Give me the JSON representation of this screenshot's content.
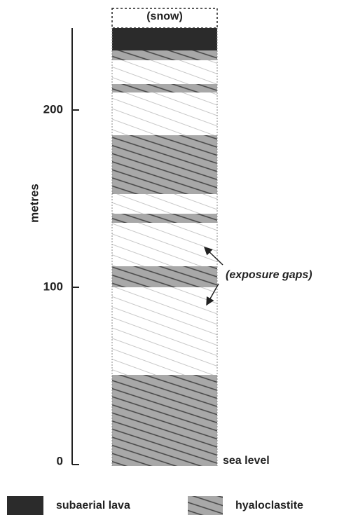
{
  "column": {
    "top_label": "(snow)"
  },
  "axis": {
    "label": "metres",
    "ticks": [
      "0",
      "100",
      "200"
    ]
  },
  "annotations": {
    "gaps": "(exposure gaps)",
    "sea_level": "sea level"
  },
  "legend": [
    {
      "label": "subaerial lava"
    },
    {
      "label": "hyaloclastite"
    }
  ]
}
